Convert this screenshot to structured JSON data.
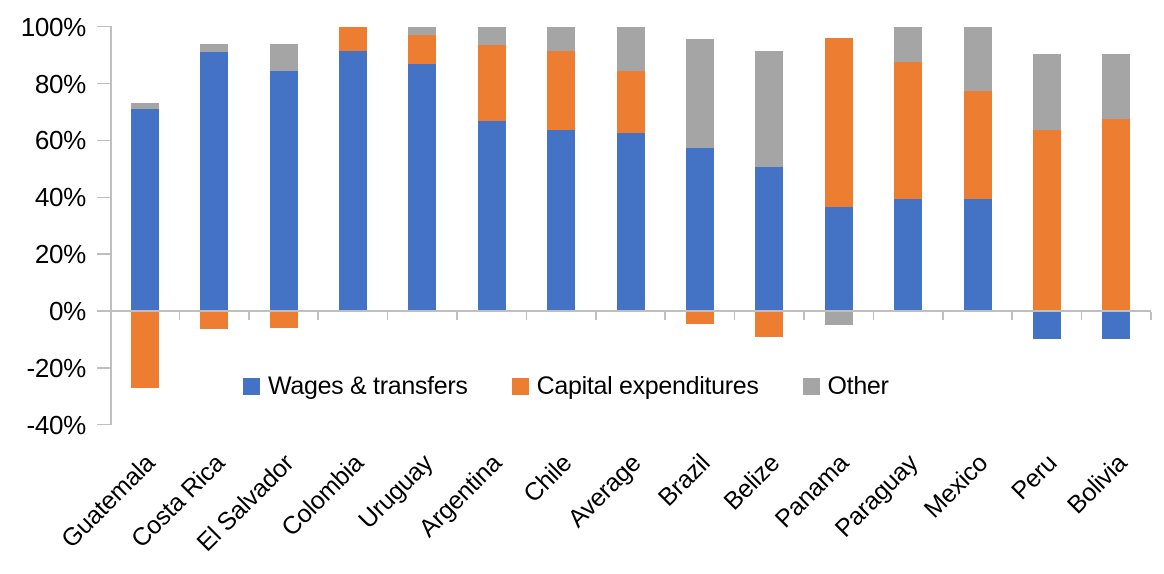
{
  "figure": {
    "background": "#FFFFFF",
    "text_color": "#000000",
    "axis_color": "#BFBFBF"
  },
  "chart_data": {
    "type": "bar",
    "stacked": true,
    "title": "",
    "xlabel": "",
    "ylabel": "",
    "categories": [
      "Guatemala",
      "Costa Rica",
      "El Salvador",
      "Colombia",
      "Uruguay",
      "Argentina",
      "Chile",
      "Average",
      "Brazil",
      "Belize",
      "Panama",
      "Paraguay",
      "Mexico",
      "Peru",
      "Bolivia"
    ],
    "series": [
      {
        "name": "Wages & transfers",
        "color": "#4472C4",
        "values": [
          71,
          91,
          84.5,
          91.5,
          87,
          67,
          63.5,
          62.5,
          57.5,
          50.5,
          36.5,
          39.5,
          39.5,
          -10,
          -10
        ]
      },
      {
        "name": "Capital expenditures",
        "color": "#ED7D31",
        "values": [
          -27,
          -6.5,
          -6,
          8.5,
          10,
          26.5,
          28,
          22,
          -4.5,
          -9,
          59.5,
          48,
          38,
          63.5,
          67.5
        ]
      },
      {
        "name": "Other",
        "color": "#A5A5A5",
        "values": [
          2,
          3,
          9.5,
          0,
          3,
          6.5,
          8.5,
          15.5,
          38,
          41,
          -5,
          12.5,
          22.5,
          27,
          23
        ]
      }
    ],
    "ylim": [
      -40,
      100
    ],
    "ytick_step": 20,
    "ytick_suffix": "%",
    "grid": false,
    "legend_position": "bottom-inside"
  }
}
